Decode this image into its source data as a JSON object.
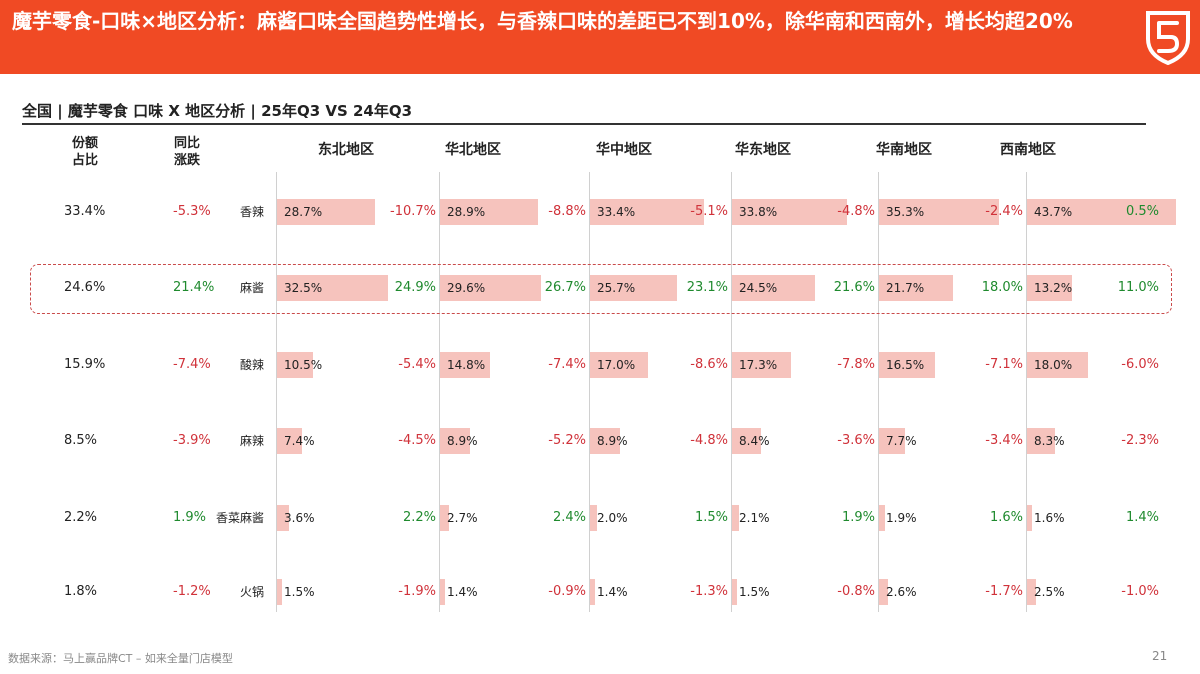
{
  "header": {
    "title": "魔芋零食-口味×地区分析：麻酱口味全国趋势性增长，与香辣口味的差距已不到10%，除华南和西南外，增长均超20%",
    "accent": "#f04a24"
  },
  "subtitle": "全国 | 魔芋零食 口味 X 地区分析 | 25年Q3 VS 24年Q3",
  "headers": {
    "share": "份额\n占比",
    "yoy": "同比\n涨跌"
  },
  "chart_data": {
    "type": "table",
    "regions": [
      "东北地区",
      "华北地区",
      "华中地区",
      "华东地区",
      "华南地区",
      "西南地区"
    ],
    "rows": [
      {
        "flavor": "香辣",
        "share": "33.4%",
        "yoy": "-5.3%",
        "regions": [
          {
            "share": 28.7,
            "yoy": "-10.7%"
          },
          {
            "share": 28.9,
            "yoy": "-8.8%"
          },
          {
            "share": 33.4,
            "yoy": "-5.1%"
          },
          {
            "share": 33.8,
            "yoy": "-4.8%"
          },
          {
            "share": 35.3,
            "yoy": "-2.4%"
          },
          {
            "share": 43.7,
            "yoy": "0.5%"
          }
        ]
      },
      {
        "flavor": "麻酱",
        "share": "24.6%",
        "yoy": "21.4%",
        "regions": [
          {
            "share": 32.5,
            "yoy": "24.9%"
          },
          {
            "share": 29.6,
            "yoy": "26.7%"
          },
          {
            "share": 25.7,
            "yoy": "23.1%"
          },
          {
            "share": 24.5,
            "yoy": "21.6%"
          },
          {
            "share": 21.7,
            "yoy": "18.0%"
          },
          {
            "share": 13.2,
            "yoy": "11.0%"
          }
        ]
      },
      {
        "flavor": "酸辣",
        "share": "15.9%",
        "yoy": "-7.4%",
        "regions": [
          {
            "share": 10.5,
            "yoy": "-5.4%"
          },
          {
            "share": 14.8,
            "yoy": "-7.4%"
          },
          {
            "share": 17.0,
            "yoy": "-8.6%"
          },
          {
            "share": 17.3,
            "yoy": "-7.8%"
          },
          {
            "share": 16.5,
            "yoy": "-7.1%"
          },
          {
            "share": 18.0,
            "yoy": "-6.0%"
          }
        ]
      },
      {
        "flavor": "麻辣",
        "share": "8.5%",
        "yoy": "-3.9%",
        "regions": [
          {
            "share": 7.4,
            "yoy": "-4.5%"
          },
          {
            "share": 8.9,
            "yoy": "-5.2%"
          },
          {
            "share": 8.9,
            "yoy": "-4.8%"
          },
          {
            "share": 8.4,
            "yoy": "-3.6%"
          },
          {
            "share": 7.7,
            "yoy": "-3.4%"
          },
          {
            "share": 8.3,
            "yoy": "-2.3%"
          }
        ]
      },
      {
        "flavor": "香菜麻酱",
        "share": "2.2%",
        "yoy": "1.9%",
        "regions": [
          {
            "share": 3.6,
            "yoy": "2.2%"
          },
          {
            "share": 2.7,
            "yoy": "2.4%"
          },
          {
            "share": 2.0,
            "yoy": "1.5%"
          },
          {
            "share": 2.1,
            "yoy": "1.9%"
          },
          {
            "share": 1.9,
            "yoy": "1.6%"
          },
          {
            "share": 1.6,
            "yoy": "1.4%"
          }
        ]
      },
      {
        "flavor": "火锅",
        "share": "1.8%",
        "yoy": "-1.2%",
        "regions": [
          {
            "share": 1.5,
            "yoy": "-1.9%"
          },
          {
            "share": 1.4,
            "yoy": "-0.9%"
          },
          {
            "share": 1.4,
            "yoy": "-1.3%"
          },
          {
            "share": 1.5,
            "yoy": "-0.8%"
          },
          {
            "share": 2.6,
            "yoy": "-1.7%"
          },
          {
            "share": 2.5,
            "yoy": "-1.0%"
          }
        ]
      }
    ],
    "highlighted_row": "麻酱",
    "colors": {
      "bar": "#f6c3bd",
      "negative": "#d0323a",
      "positive": "#1f8a2e",
      "highlight_border": "#c94a4a"
    }
  },
  "footer": {
    "source": "数据来源：马上赢品牌CT – 如来全量门店模型",
    "page": "21"
  }
}
